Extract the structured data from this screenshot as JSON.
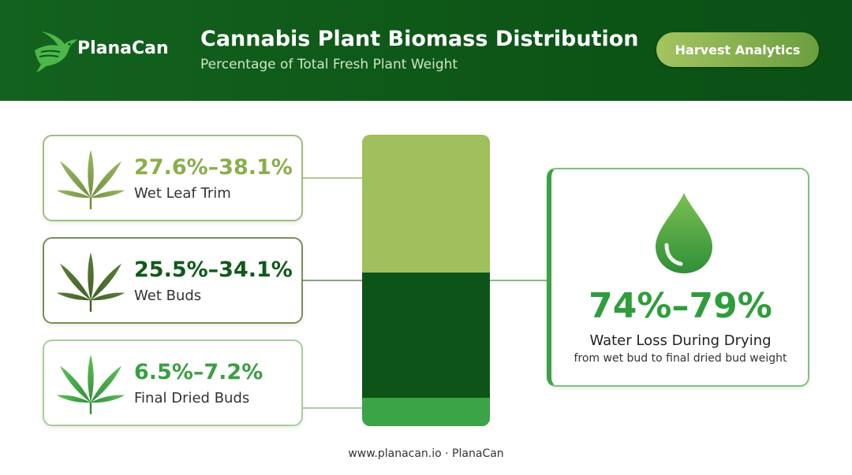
{
  "header": {
    "brand": "PlanaCan",
    "title": "Cannabis Plant Biomass Distribution",
    "subtitle": "Percentage of Total Fresh Plant Weight",
    "badge": "Harvest Analytics"
  },
  "chart_data": {
    "type": "bar",
    "orientation": "stacked-vertical",
    "title": "Cannabis Plant Biomass Distribution",
    "subtitle": "Percentage of Total Fresh Plant Weight",
    "categories": [
      "Wet Leaf Trim",
      "Wet Buds",
      "Final Dried Buds"
    ],
    "series": [
      {
        "label": "Wet Leaf Trim",
        "range_text": "27.6%–38.1%",
        "min": 27.6,
        "max": 38.1,
        "color": "#a0bf5d"
      },
      {
        "label": "Wet Buds",
        "range_text": "25.5%–34.1%",
        "min": 25.5,
        "max": 34.1,
        "color": "#0d5418"
      },
      {
        "label": "Final Dried Buds",
        "range_text": "6.5%–7.2%",
        "min": 6.5,
        "max": 7.2,
        "color": "#3aa446"
      }
    ],
    "callout": {
      "range_text": "74%–79%",
      "min": 74,
      "max": 79,
      "label": "Water Loss During Drying",
      "sublabel": "from wet bud to final dried bud weight"
    }
  },
  "colors": {
    "header_bg": "#0d5617",
    "accent_green": "#2f9d3c",
    "badge_start": "#a5c460",
    "badge_end": "#6a9e3f"
  },
  "icons": {
    "logo": "hummingbird-icon",
    "card_icon": "cannabis-leaf-icon",
    "water_icon": "water-drop-icon"
  },
  "footer": "www.planacan.io · PlanaCan"
}
